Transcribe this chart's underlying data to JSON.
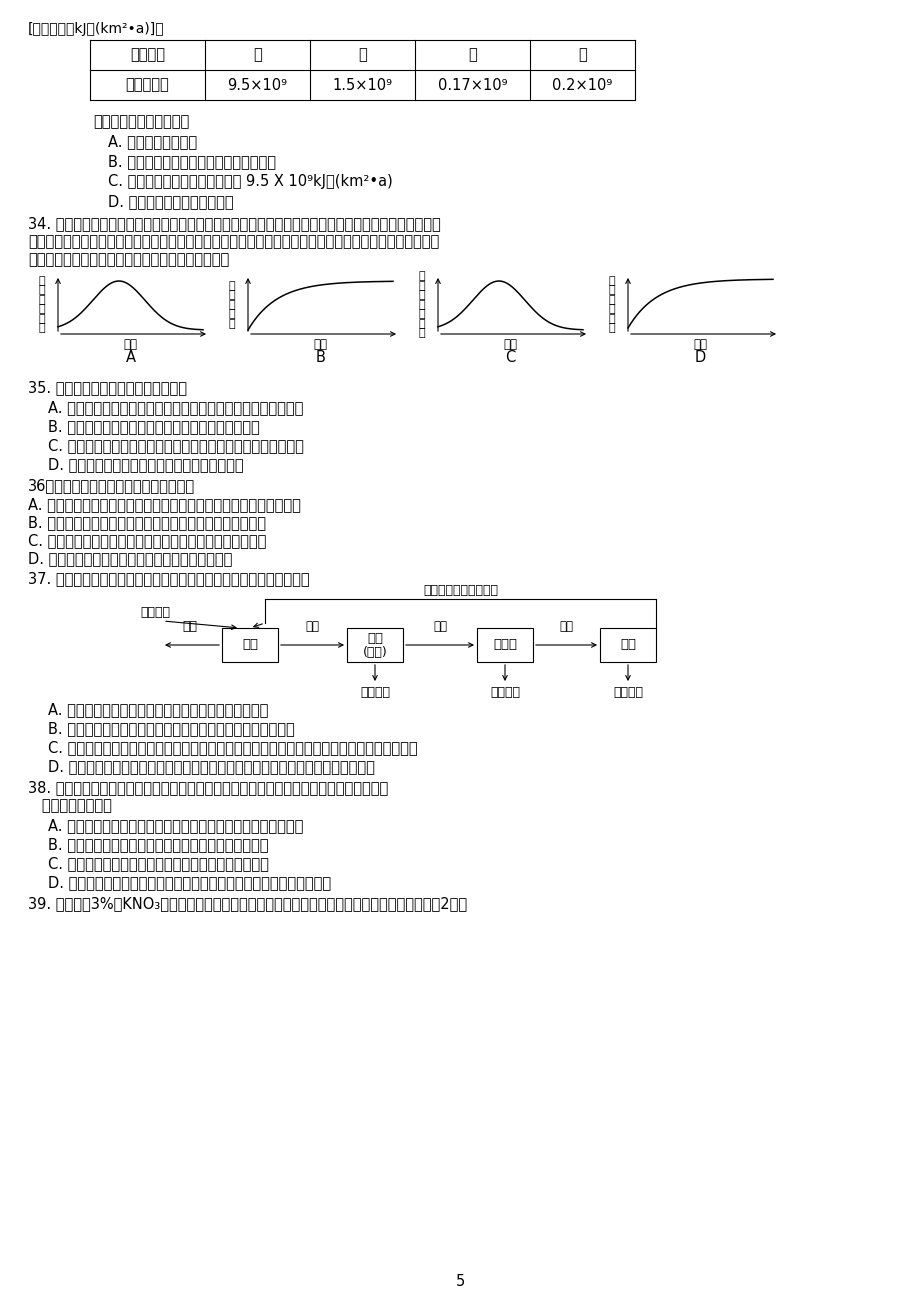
{
  "bg_color": "#ffffff",
  "top_text": "[能量单位：kJ／(km²•a)]。",
  "table_headers": [
    "生物种类",
    "草",
    "兔",
    "狐",
    "狼"
  ],
  "table_row_label": "所同化能量",
  "table_values": [
    "9.5×10⁹",
    "1.5×10⁹",
    "0.17×10⁹",
    "0.2×10⁹"
  ],
  "q33_intro": "根据上表分析不恰当的是",
  "q33_A": "A. 狐属于次级消费者",
  "q33_B": "B. 兔所同化的能量不包括其粪便中的能量",
  "q33_C": "C. 流经生态系统的总能量不超过 9.5 X 10⁹kJ／(km²•a)",
  "q33_D": "D. 狼所占的营养级一定比狐高",
  "q34_line1": "34. 一块弃耕的农田，很快长满杂草，几年后，草本植物开始减少，各种灌木却繁茂起来，最后这块农田",
  "q34_line2": "演变成了一片森林。这片森林在不受外力干扰的情况下将会长期占据那里，成为一个非常稳定的生态系统。",
  "q34_line3": "该生态系统在此演变过程中，相关变化趋势正确的是",
  "graph_A_ylabel_chars": [
    "物",
    "种",
    "丰",
    "富",
    "程",
    "度"
  ],
  "graph_A_xlabel": "时间",
  "graph_A_label": "A",
  "graph_A_shape": "rise_fall",
  "graph_B_ylabel_chars": [
    "净",
    "光",
    "合",
    "产",
    "量"
  ],
  "graph_B_xlabel": "时间",
  "graph_B_label": "B",
  "graph_B_shape": "rise_level",
  "graph_C_ylabel_chars": [
    "固",
    "定",
    "太",
    "阳",
    "能",
    "总",
    "量"
  ],
  "graph_C_xlabel": "时间",
  "graph_C_label": "C",
  "graph_C_shape": "rise_fall",
  "graph_D_ylabel_chars": [
    "恢",
    "复",
    "力",
    "稳",
    "定",
    "性"
  ],
  "graph_D_xlabel": "时间",
  "graph_D_label": "D",
  "graph_D_shape": "fall_level",
  "q35_text": "35. 下列有关草原群落的叙述正确的是",
  "q35_A": "A. 草原上的牧草长势整齐，因此群落在垂直方向上没有分层现象",
  "q35_B": "B. 在群落水平上研究草原，要研究草原的范围和边界",
  "q35_C": "C. 过度放牧、退耕还草等人为活动不会影响草原群落的自然演替",
  "q35_D": "D. 草原群落上的动物在水平方向上是均匀分布的",
  "q36_text": "36、以下对生物进化理论的理解正确的是",
  "q36_A": "A. 二倍体植物用秋水仙素处理形成四倍体，二者之间不存在生殖隔离",
  "q36_B": "B. 物种之间的协同进化都是通过物种之间的生存斗争实现的",
  "q36_C": "C. 不同物种之间、生物与环境之间共同进化导致生物多样性",
  "q36_D": "D. 只有基因突变和基因重组为生物进化提供原材料",
  "q37_text": "37. 下面是某生态农场生产流程示意图，据图判断，下列说法正确的是",
  "diag_sun": "太阳辐射",
  "diag_top_label": "排泤物、杂层（肥料）",
  "diag_box1": "作物",
  "diag_box2_l1": "家畜",
  "diag_box2_l2": "(饲料)",
  "diag_box3": "食用菌",
  "diag_box4": "蚁蚂",
  "diag_arrow12": "秸秵",
  "diag_arrow23": "粪层",
  "diag_arrow34": "杂层",
  "diag_left_label": "籽实",
  "diag_output": "产品输出",
  "q37_A": "A. 能量经过多级利用，实现了生态系统能量的良性循环",
  "q37_B": "B. 由于食物链延长，能量逐级损耗，系统总能量利用效率降低",
  "q37_C": "C. 当蚁蒂利用食用菌杂层并将其同化为自身的有机物时，能量就从第三营养级流入第四营养级",
  "q37_D": "D. 每一环节都获得产品，循环利用了农业有机废弃物，提高了生态效益、经济效益",
  "q38_line1": "38. 取洋葡根尖临时装片，欲在显微镜下观察到细胞有丝分裂的前、中、后、末几个时期，",
  "q38_line2": "   下列叙述正确的是",
  "q38_A": "A. 应选一个处于间期的细胞，持续观察它从间期到末期的全过程",
  "q38_B": "B. 如果在低倍镜下看不到细胞，可改用高倍镜继续寻找",
  "q38_C": "C. 如果视野过暗，可转动细调焦贸旋旋增加视野的亮度",
  "q38_D": "D. 如果在一个视野中不能看全各个时期，可移动装片从周围细胞中寻找",
  "q39_text": "39. 某学生将3%的KNO₃溶液滴加在载玻片上的洋葡表皮上，观察到了植物细胞的质壁分离现象，2小时"
}
